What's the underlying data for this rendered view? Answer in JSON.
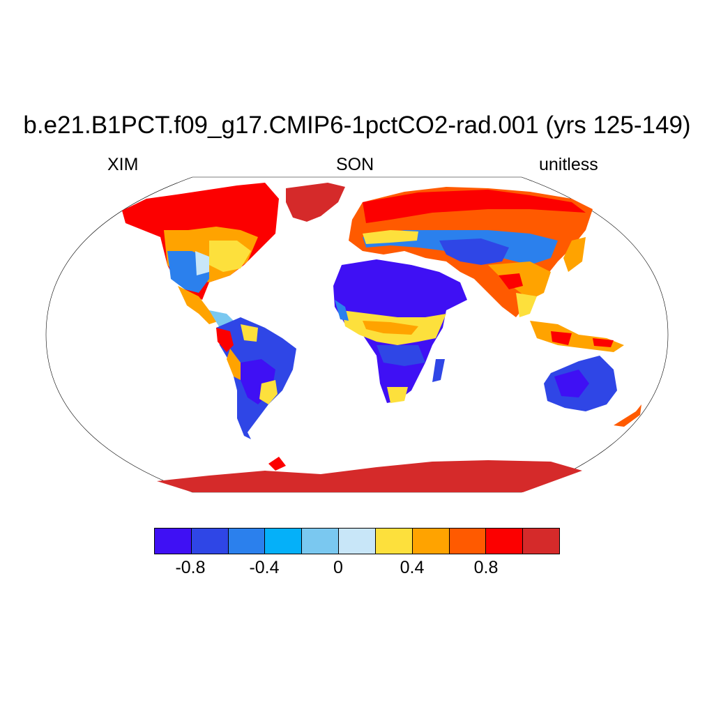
{
  "title": "b.e21.B1PCT.f09_g17.CMIP6-1pctCO2-rad.001 (yrs 125-149)",
  "subtitle_left": "XIM",
  "subtitle_center": "SON",
  "subtitle_right": "unitless",
  "colorbar": {
    "colors": [
      "#3f10f4",
      "#2f46e6",
      "#2b80ed",
      "#05b0f9",
      "#7ac8f0",
      "#c8e6f8",
      "#fde03c",
      "#ffa300",
      "#ff5a00",
      "#fc0000",
      "#d52a2a"
    ],
    "tick_labels": [
      "-0.8",
      "-0.4",
      "0",
      "0.4",
      "0.8"
    ]
  },
  "map_regions": {
    "greenland": "#d52a2a",
    "antarctica": "#d52a2a",
    "siberia": "#ff5a00",
    "canada": "#fc0000",
    "sahara": "#3f10f4",
    "australia": "#2f46e6",
    "amazon": "#2f46e6",
    "sahel": "#ffa300",
    "south_africa": "#3f10f4",
    "central_asia": "#2b80ed",
    "tibet": "#ffa300",
    "usa": "#2b80ed"
  }
}
